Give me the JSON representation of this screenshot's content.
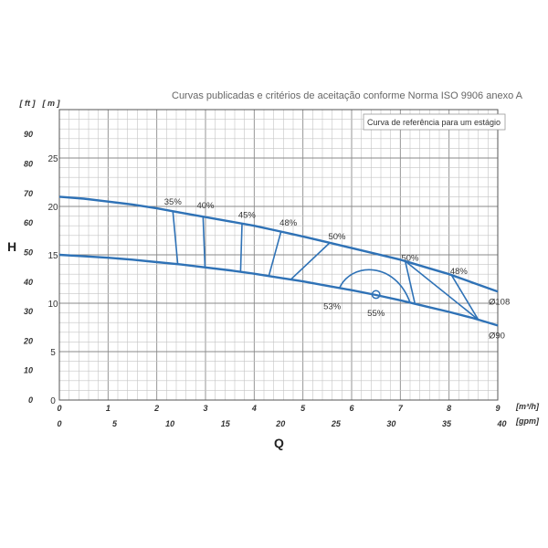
{
  "chart_data": {
    "type": "line",
    "title": "Curvas publicadas e critérios de aceitação conforme Norma ISO 9906 anexo A",
    "legend_box": "Curva de referência para um estágio",
    "y_axis_name": "H",
    "x_axis_name": "Q",
    "y_unit_ft": "[ ft ]",
    "y_unit_m": "[ m ]",
    "x_unit_m3h": "[m³/h]",
    "x_unit_gpm": "[gpm]",
    "xlim_m3h": [
      0,
      9
    ],
    "ylim_m": [
      0,
      30
    ],
    "x_ticks_m3h": [
      "0",
      "1",
      "2",
      "3",
      "4",
      "5",
      "6",
      "7",
      "8",
      "9"
    ],
    "x_ticks_gpm": [
      "0",
      "5",
      "10",
      "15",
      "20",
      "25",
      "30",
      "35",
      "40"
    ],
    "y_ticks_m": [
      "0",
      "5",
      "10",
      "15",
      "20",
      "25"
    ],
    "y_ticks_ft": [
      "0",
      "10",
      "20",
      "30",
      "40",
      "50",
      "60",
      "70",
      "80",
      "90"
    ],
    "series": [
      {
        "name": "Ø108",
        "x": [
          0,
          0.5,
          1,
          1.5,
          2,
          2.5,
          3,
          3.5,
          4,
          4.5,
          5,
          5.5,
          6,
          6.5,
          7,
          7.5,
          8,
          8.5,
          9
        ],
        "y": [
          21.0,
          20.8,
          20.5,
          20.2,
          19.8,
          19.35,
          18.9,
          18.45,
          18.0,
          17.45,
          16.9,
          16.3,
          15.7,
          15.1,
          14.5,
          13.75,
          13.0,
          12.1,
          11.2
        ]
      },
      {
        "name": "Ø90",
        "x": [
          0,
          0.5,
          1,
          1.5,
          2,
          2.5,
          3,
          3.5,
          4,
          4.5,
          5,
          5.5,
          6,
          6.5,
          7,
          7.5,
          8,
          8.5,
          9
        ],
        "y": [
          15.0,
          14.85,
          14.7,
          14.5,
          14.25,
          14.0,
          13.7,
          13.4,
          13.05,
          12.65,
          12.25,
          11.8,
          11.35,
          10.85,
          10.3,
          9.7,
          9.1,
          8.45,
          7.7
        ]
      }
    ],
    "efficiency_lines": [
      {
        "label": "35%",
        "x_top": 2.33,
        "x_bottom": 2.43,
        "label_x": 2.33,
        "label_y": 20.2
      },
      {
        "label": "40%",
        "x_top": 2.95,
        "x_bottom": 2.99,
        "label_x": 3.0,
        "label_y": 19.8
      },
      {
        "label": "45%",
        "x_top": 3.75,
        "x_bottom": 3.72,
        "label_x": 3.85,
        "label_y": 18.8
      },
      {
        "label": "48%",
        "x_top": 4.55,
        "x_bottom": 4.3,
        "label_x": 4.7,
        "label_y": 18.0
      },
      {
        "label": "50%",
        "x_top": 5.55,
        "x_bottom": 4.75,
        "label_x": 5.7,
        "label_y": 16.6
      }
    ],
    "efficiency_right": [
      {
        "label": "50%",
        "x_top": 7.1,
        "x_bottom": 7.3,
        "label_x": 7.2,
        "label_y": 14.4
      },
      {
        "label": "48%",
        "x_top": 8.05,
        "x_bottom": 8.6,
        "label_x": 8.2,
        "label_y": 13.0
      }
    ],
    "efficiency_loop": {
      "label_53": "53%",
      "label_55": "55%",
      "bep_x": 6.5,
      "bep_y": 10.9
    },
    "grid": true
  }
}
